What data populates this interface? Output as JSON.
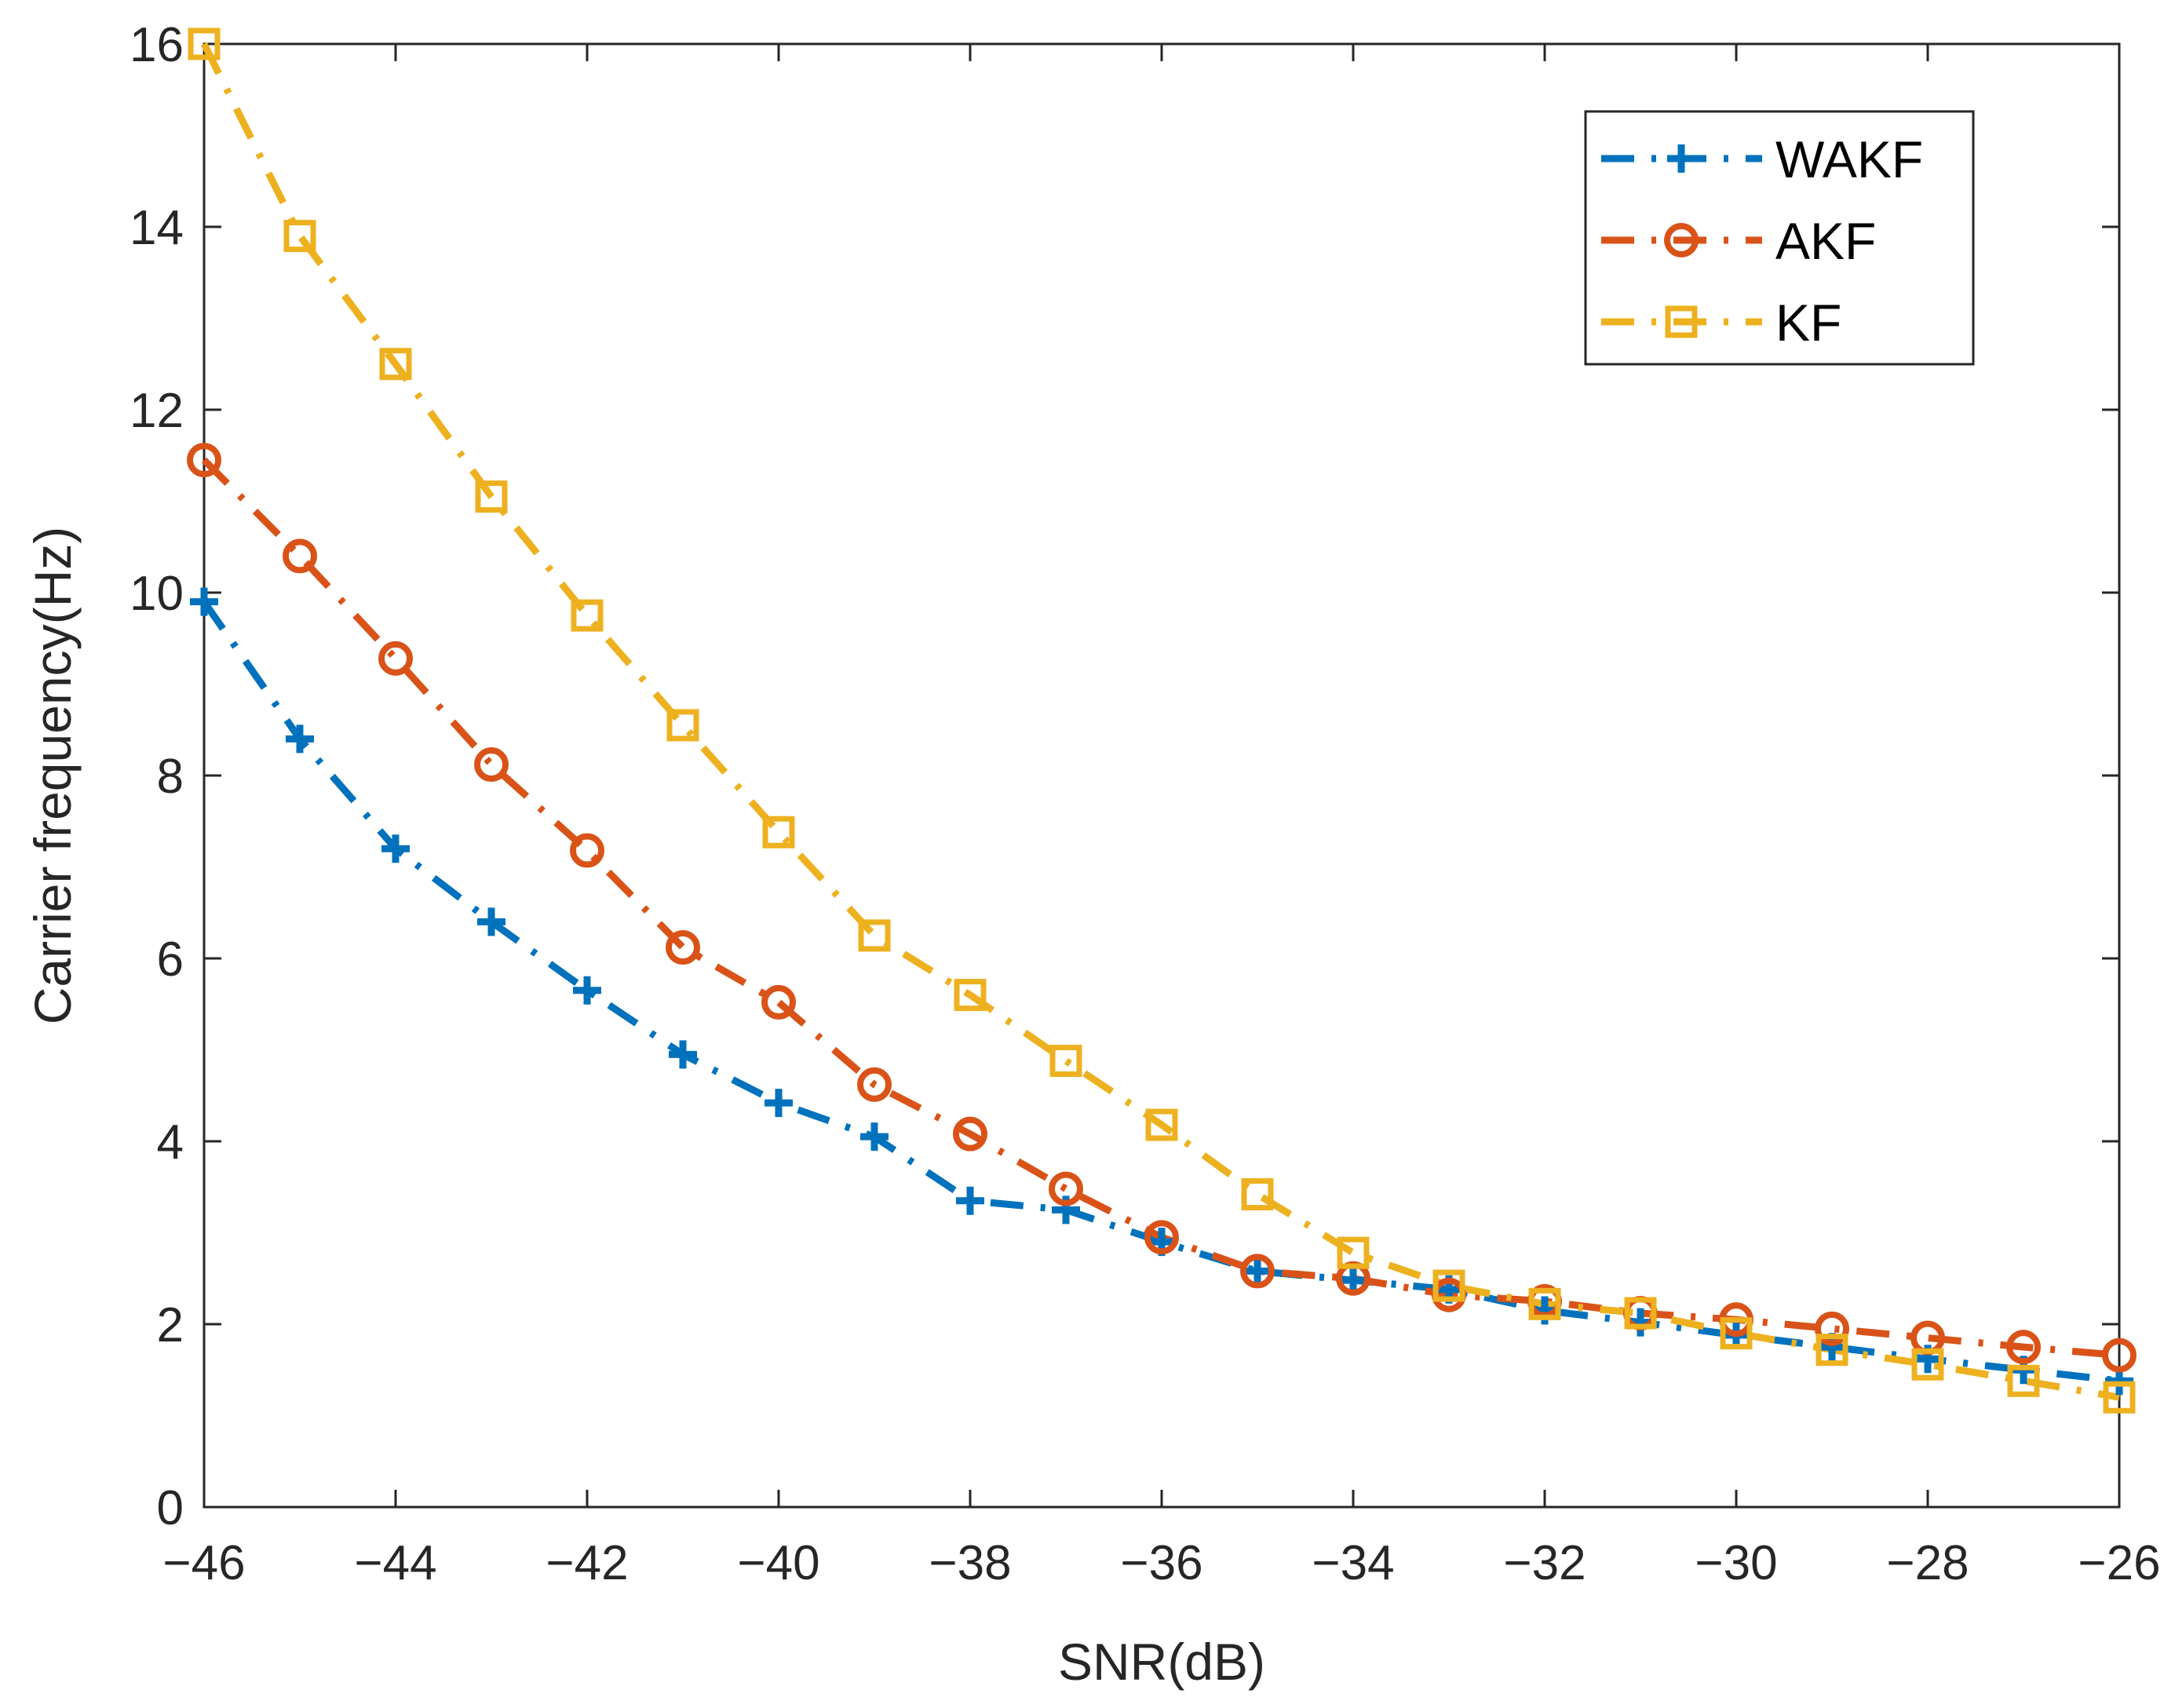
{
  "chart_data": {
    "type": "line",
    "title": "",
    "xlabel": "SNR(dB)",
    "ylabel": "Carrier frequency(Hz)",
    "xlim": [
      -46,
      -26
    ],
    "ylim": [
      0,
      16
    ],
    "grid": false,
    "legend_position": "top-right",
    "x_ticks": [
      -46,
      -44,
      -42,
      -40,
      -38,
      -36,
      -34,
      -32,
      -30,
      -28,
      -26
    ],
    "x_tick_labels": [
      "−46",
      "−44",
      "−42",
      "−40",
      "−38",
      "−36",
      "−34",
      "−32",
      "−30",
      "−28",
      "−26"
    ],
    "y_ticks": [
      0,
      2,
      4,
      6,
      8,
      10,
      12,
      14,
      16
    ],
    "y_tick_labels": [
      "0",
      "2",
      "4",
      "6",
      "8",
      "10",
      "12",
      "14",
      "16"
    ],
    "x": [
      -46,
      -45,
      -44,
      -43,
      -42,
      -41,
      -40,
      -39,
      -38,
      -37,
      -36,
      -35,
      -34,
      -33,
      -32,
      -31,
      -30,
      -29,
      -28,
      -27,
      -26
    ],
    "series": [
      {
        "name": "WAKF",
        "color": "#0072BD",
        "marker": "plus",
        "values": [
          9.9,
          8.4,
          7.2,
          6.4,
          5.65,
          4.95,
          4.42,
          4.05,
          3.35,
          3.25,
          2.9,
          2.58,
          2.48,
          2.38,
          2.15,
          2.02,
          1.88,
          1.75,
          1.62,
          1.5,
          1.38
        ]
      },
      {
        "name": "AKF",
        "color": "#D95319",
        "marker": "circle",
        "values": [
          11.45,
          10.4,
          9.28,
          8.12,
          7.18,
          6.12,
          5.52,
          4.62,
          4.08,
          3.48,
          2.95,
          2.58,
          2.5,
          2.32,
          2.25,
          2.12,
          2.05,
          1.95,
          1.85,
          1.75,
          1.66
        ]
      },
      {
        "name": "KF",
        "color": "#EDB120",
        "marker": "square",
        "values": [
          16.0,
          13.9,
          12.5,
          11.05,
          9.75,
          8.55,
          7.38,
          6.25,
          5.6,
          4.88,
          4.18,
          3.42,
          2.78,
          2.42,
          2.22,
          2.12,
          1.9,
          1.72,
          1.56,
          1.38,
          1.2
        ]
      }
    ]
  }
}
